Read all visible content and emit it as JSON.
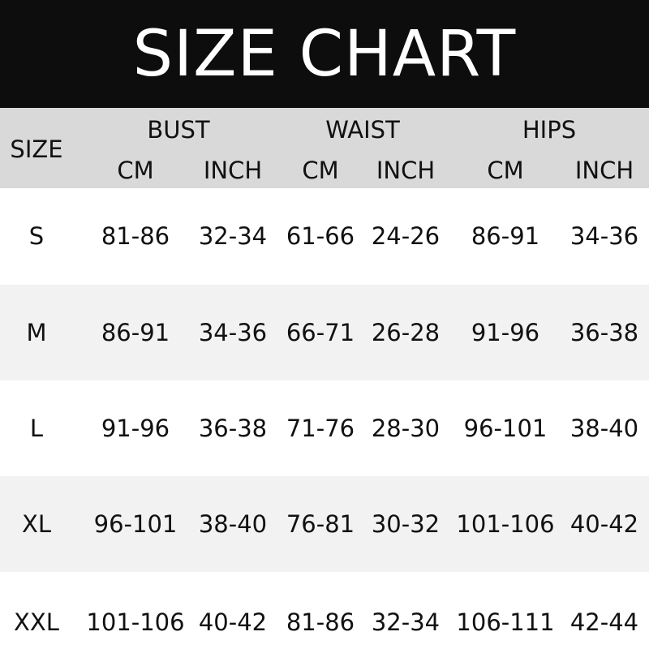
{
  "title": "SIZE CHART",
  "header": {
    "size": "SIZE",
    "groups": [
      "BUST",
      "WAIST",
      "HIPS"
    ],
    "units": [
      "CM",
      "INCH",
      "CM",
      "INCH",
      "CM",
      "INCH"
    ]
  },
  "rows": [
    {
      "size": "S",
      "values": [
        "81-86",
        "32-34",
        "61-66",
        "24-26",
        "86-91",
        "34-36"
      ]
    },
    {
      "size": "M",
      "values": [
        "86-91",
        "34-36",
        "66-71",
        "26-28",
        "91-96",
        "36-38"
      ]
    },
    {
      "size": "L",
      "values": [
        "91-96",
        "36-38",
        "71-76",
        "28-30",
        "96-101",
        "38-40"
      ]
    },
    {
      "size": "XL",
      "values": [
        "96-101",
        "38-40",
        "76-81",
        "30-32",
        "101-106",
        "40-42"
      ]
    },
    {
      "size": "XXL",
      "values": [
        "101-106",
        "40-42",
        "81-86",
        "32-34",
        "106-111",
        "42-44"
      ]
    }
  ],
  "colors": {
    "title_bg": "#0d0d0d",
    "header_bg": "#d9d9d9",
    "row_alt": "#f2f2f2",
    "row": "#ffffff"
  }
}
